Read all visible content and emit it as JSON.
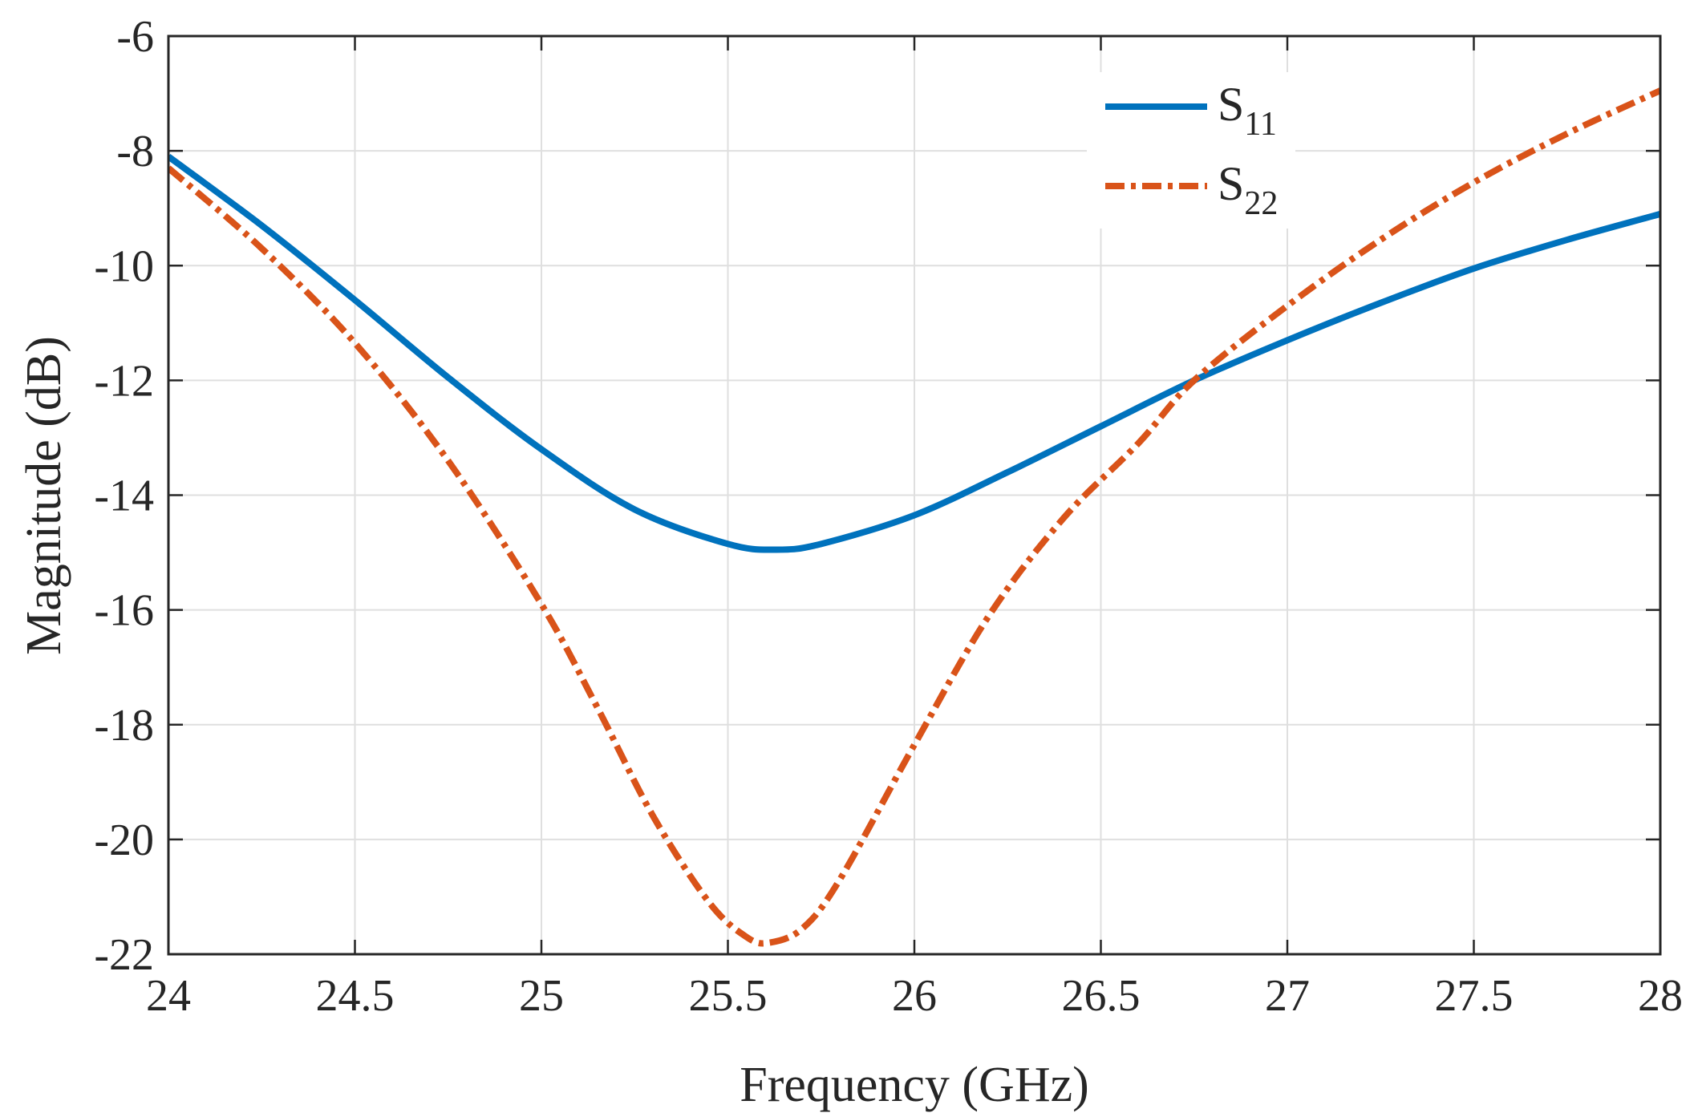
{
  "chart_data": {
    "type": "line",
    "title": "",
    "xlabel": "Frequency (GHz)",
    "ylabel": "Magnitude (dB)",
    "xlim": [
      24,
      28
    ],
    "ylim": [
      -22,
      -6
    ],
    "xticks": [
      "24",
      "24.5",
      "25",
      "25.5",
      "26",
      "26.5",
      "27",
      "27.5",
      "28"
    ],
    "yticks": [
      "-22",
      "-20",
      "-18",
      "-16",
      "-14",
      "-12",
      "-10",
      "-8",
      "-6"
    ],
    "grid": true,
    "legend_position": "top-right",
    "series": [
      {
        "name": "S11",
        "label_main": "S",
        "label_sub": "11",
        "color": "#0072BD",
        "style": "solid",
        "x": [
          24.0,
          24.25,
          24.5,
          24.75,
          25.0,
          25.25,
          25.5,
          25.63,
          25.75,
          26.0,
          26.25,
          26.5,
          26.75,
          27.0,
          27.25,
          27.5,
          27.75,
          28.0
        ],
        "y": [
          -8.1,
          -9.3,
          -10.6,
          -11.95,
          -13.2,
          -14.25,
          -14.85,
          -14.95,
          -14.85,
          -14.35,
          -13.6,
          -12.8,
          -12.0,
          -11.3,
          -10.65,
          -10.05,
          -9.55,
          -9.1
        ]
      },
      {
        "name": "S22",
        "label_main": "S",
        "label_sub": "22",
        "color": "#D95319",
        "style": "dash-dot",
        "x": [
          24.0,
          24.25,
          24.5,
          24.75,
          25.0,
          25.15,
          25.3,
          25.45,
          25.55,
          25.61,
          25.7,
          25.8,
          26.0,
          26.2,
          26.4,
          26.6,
          26.75,
          27.0,
          27.25,
          27.5,
          27.75,
          28.0
        ],
        "y": [
          -8.3,
          -9.7,
          -11.35,
          -13.4,
          -15.9,
          -17.7,
          -19.6,
          -21.1,
          -21.7,
          -21.8,
          -21.55,
          -20.7,
          -18.35,
          -16.1,
          -14.4,
          -13.1,
          -12.0,
          -10.7,
          -9.55,
          -8.55,
          -7.7,
          -6.95
        ]
      }
    ]
  }
}
